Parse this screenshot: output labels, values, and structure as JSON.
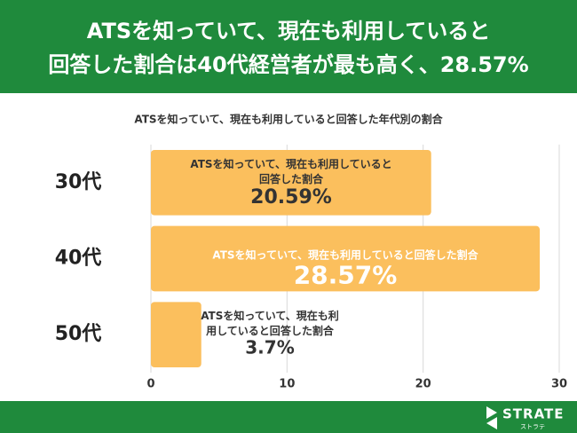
{
  "chart_data": {
    "type": "bar",
    "orientation": "horizontal",
    "title": [
      "ATSを知っていて、現在も利用していると",
      "回答した割合は40代経営者が最も高く、28.57%"
    ],
    "subtitle": "ATSを知っていて、現在も利用していると回答した年代別の割合",
    "categories": [
      "30代",
      "40代",
      "50代"
    ],
    "series": [
      {
        "name": "ATSを知っていて、現在も利用していると回答した割合",
        "color": "#fbbf5d",
        "values": [
          20.59,
          28.57,
          3.7
        ],
        "value_labels": [
          "20.59%",
          "28.57%",
          "3.7%"
        ]
      }
    ],
    "xlim": [
      0,
      30
    ],
    "xticks": [
      0,
      10,
      20,
      30
    ],
    "grid": true
  },
  "logo": {
    "name": "STRATE",
    "sub": "ストラテ"
  }
}
